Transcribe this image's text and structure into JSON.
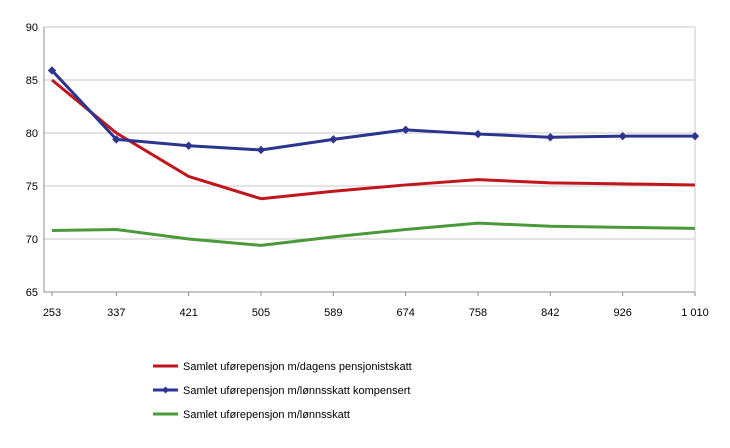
{
  "chart_data": {
    "type": "line",
    "title": "",
    "xlabel": "",
    "ylabel": "",
    "categories": [
      "253",
      "337",
      "421",
      "505",
      "589",
      "674",
      "758",
      "842",
      "926",
      "1 010"
    ],
    "ylim": [
      65,
      90
    ],
    "yticks": [
      65,
      70,
      75,
      80,
      85,
      90
    ],
    "grid": "horizontal",
    "legend_position": "bottom",
    "series": [
      {
        "name": "Samlet uførepensjon m/dagens pensjonistskatt",
        "color": "#c0161d",
        "marker": "none",
        "values": [
          85.0,
          80.0,
          75.9,
          73.8,
          74.5,
          75.1,
          75.6,
          75.3,
          75.2,
          75.1
        ]
      },
      {
        "name": "Samlet uførepensjon m/lønnsskatt kompensert",
        "color": "#2b3590",
        "marker": "diamond",
        "values": [
          85.9,
          79.4,
          78.8,
          78.4,
          79.4,
          80.3,
          79.9,
          79.6,
          79.7,
          79.7
        ]
      },
      {
        "name": "Samlet uførepensjon m/lønnsskatt",
        "color": "#4a9a3c",
        "marker": "none",
        "values": [
          70.8,
          70.9,
          70.0,
          69.4,
          70.2,
          70.9,
          71.5,
          71.2,
          71.1,
          71.0
        ]
      }
    ]
  }
}
